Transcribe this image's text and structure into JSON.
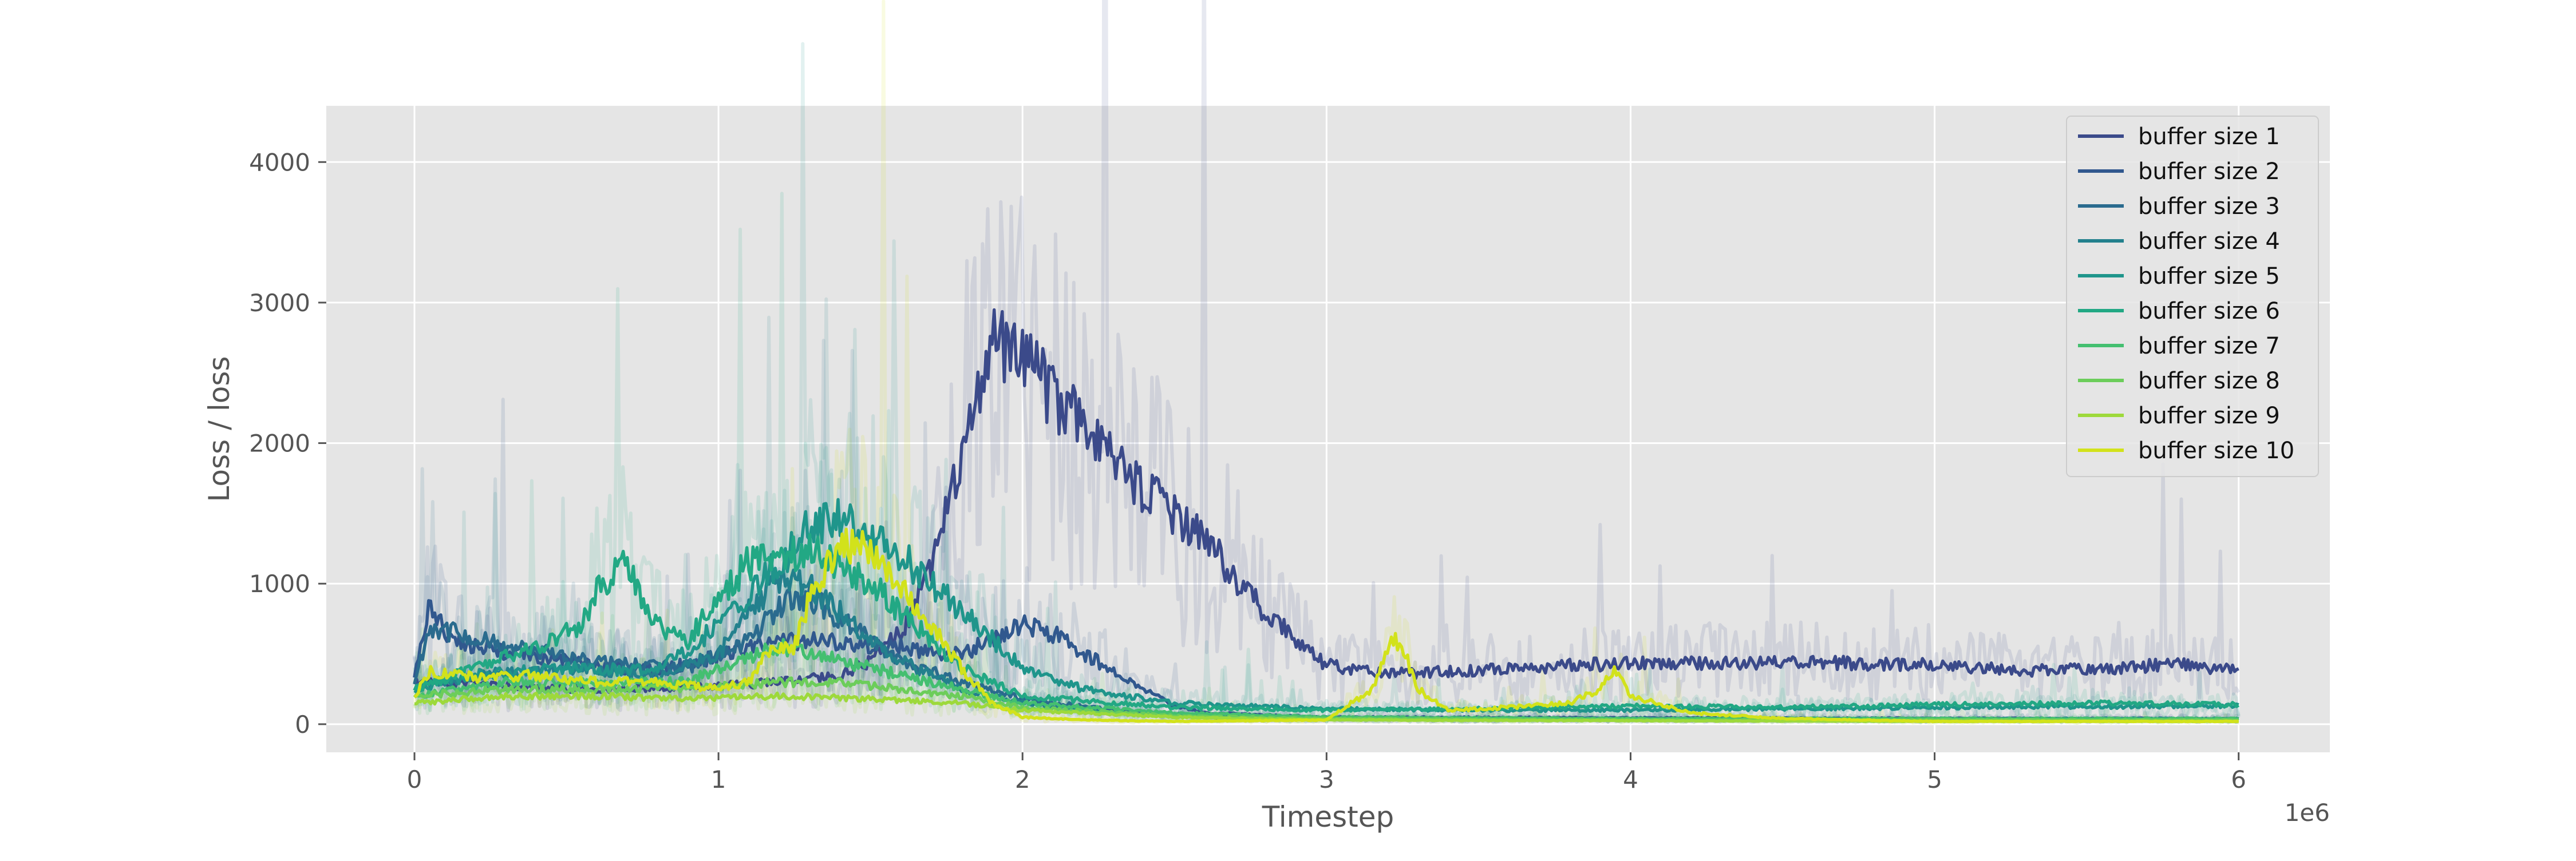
{
  "chart_data": {
    "type": "line",
    "title": "",
    "xlabel": "Timestep",
    "ylabel": "Loss / loss",
    "x_offset_label": "1e6",
    "xlim": [
      -0.29,
      6.3
    ],
    "ylim": [
      -200,
      4400
    ],
    "x_ticks": [
      0,
      1,
      2,
      3,
      4,
      5,
      6
    ],
    "x_tick_labels": [
      "0",
      "1",
      "2",
      "3",
      "4",
      "5",
      "6"
    ],
    "y_ticks": [
      0,
      1000,
      2000,
      3000,
      4000
    ],
    "y_tick_labels": [
      "0",
      "1000",
      "2000",
      "3000",
      "4000"
    ],
    "grid": true,
    "legend_position": "top-right",
    "background": "#e5e5e5",
    "series": [
      {
        "name": "buffer size 1",
        "color": "#3b4a8a",
        "x": [
          0,
          0.2,
          0.5,
          0.8,
          1.0,
          1.2,
          1.4,
          1.5,
          1.6,
          1.7,
          1.8,
          1.9,
          2.0,
          2.1,
          2.2,
          2.3,
          2.4,
          2.5,
          2.6,
          2.7,
          2.8,
          2.9,
          3.0,
          3.2,
          3.5,
          3.8,
          4.0,
          4.3,
          4.6,
          5.0,
          5.3,
          5.6,
          5.8,
          6.0
        ],
        "y": [
          300,
          280,
          250,
          260,
          270,
          300,
          350,
          450,
          650,
          1100,
          1900,
          2700,
          2550,
          2350,
          2150,
          1900,
          1650,
          1500,
          1300,
          1050,
          800,
          600,
          420,
          360,
          380,
          420,
          430,
          440,
          440,
          420,
          380,
          400,
          430,
          380
        ]
      },
      {
        "name": "buffer size 2",
        "color": "#31588e",
        "x": [
          0,
          0.05,
          0.1,
          0.2,
          0.4,
          0.6,
          0.8,
          1.0,
          1.2,
          1.4,
          1.6,
          1.7,
          1.8,
          1.9,
          2.0,
          2.1,
          2.2,
          2.3,
          2.4,
          2.5,
          2.6,
          3.0,
          4.0,
          5.0,
          6.0
        ],
        "y": [
          350,
          850,
          650,
          550,
          480,
          420,
          380,
          480,
          600,
          580,
          550,
          520,
          500,
          600,
          700,
          650,
          500,
          380,
          250,
          130,
          80,
          50,
          45,
          40,
          40
        ]
      },
      {
        "name": "buffer size 3",
        "color": "#2a6b8e",
        "x": [
          0,
          0.05,
          0.3,
          0.6,
          0.9,
          1.1,
          1.2,
          1.3,
          1.4,
          1.5,
          1.6,
          1.8,
          2.0,
          2.3,
          2.6,
          3.0,
          4.0,
          5.0,
          6.0
        ],
        "y": [
          300,
          700,
          550,
          450,
          400,
          600,
          850,
          900,
          750,
          600,
          450,
          300,
          180,
          100,
          60,
          40,
          35,
          30,
          30
        ]
      },
      {
        "name": "buffer size 4",
        "color": "#23808d",
        "x": [
          0,
          0.2,
          0.5,
          0.8,
          1.0,
          1.1,
          1.2,
          1.3,
          1.4,
          1.5,
          1.6,
          1.8,
          2.0,
          2.3,
          2.6,
          3.0,
          4.0,
          5.0,
          6.0
        ],
        "y": [
          250,
          350,
          400,
          350,
          500,
          800,
          1050,
          1000,
          800,
          600,
          450,
          250,
          150,
          80,
          50,
          40,
          40,
          40,
          40
        ]
      },
      {
        "name": "buffer size 5",
        "color": "#1f958b",
        "x": [
          0,
          0.2,
          0.5,
          0.8,
          1.0,
          1.2,
          1.3,
          1.4,
          1.5,
          1.6,
          1.7,
          1.8,
          1.9,
          2.0,
          2.2,
          2.5,
          3.0,
          3.5,
          4.0,
          5.0,
          6.0
        ],
        "y": [
          250,
          350,
          400,
          380,
          700,
          1150,
          1400,
          1450,
          1350,
          1200,
          1000,
          800,
          600,
          400,
          250,
          150,
          110,
          100,
          100,
          120,
          130
        ]
      },
      {
        "name": "buffer size 6",
        "color": "#22a884",
        "x": [
          0,
          0.2,
          0.4,
          0.55,
          0.6,
          0.65,
          0.7,
          0.75,
          0.8,
          0.9,
          1.0,
          1.1,
          1.2,
          1.3,
          1.4,
          1.5,
          1.6,
          1.7,
          1.8,
          2.0,
          2.5,
          3.0,
          3.5,
          4.0,
          4.5,
          5.0,
          5.5,
          6.0
        ],
        "y": [
          250,
          400,
          550,
          700,
          950,
          1050,
          1150,
          900,
          700,
          600,
          900,
          1150,
          1200,
          1250,
          1150,
          1000,
          800,
          600,
          400,
          200,
          120,
          100,
          110,
          130,
          120,
          140,
          150,
          140
        ]
      },
      {
        "name": "buffer size 7",
        "color": "#44bf70",
        "x": [
          0,
          0.3,
          0.6,
          0.9,
          1.0,
          1.2,
          1.4,
          1.6,
          1.8,
          2.0,
          2.5,
          3.0,
          4.0,
          5.0,
          6.0
        ],
        "y": [
          200,
          300,
          300,
          300,
          400,
          550,
          450,
          350,
          250,
          150,
          80,
          50,
          40,
          40,
          40
        ]
      },
      {
        "name": "buffer size 8",
        "color": "#6ccd5a",
        "x": [
          0,
          0.3,
          0.6,
          0.9,
          1.2,
          1.4,
          1.6,
          1.8,
          2.0,
          2.5,
          3.0,
          4.0,
          5.0,
          6.0
        ],
        "y": [
          200,
          250,
          250,
          250,
          300,
          300,
          250,
          200,
          120,
          60,
          40,
          30,
          30,
          30
        ]
      },
      {
        "name": "buffer size 9",
        "color": "#9dd93b",
        "x": [
          0,
          0.3,
          0.6,
          0.9,
          1.2,
          1.5,
          1.8,
          2.0,
          2.5,
          3.0,
          4.0,
          5.0,
          6.0
        ],
        "y": [
          150,
          200,
          200,
          180,
          200,
          180,
          150,
          100,
          50,
          30,
          25,
          20,
          20
        ]
      },
      {
        "name": "buffer size 10",
        "color": "#d2e21b",
        "x": [
          0,
          0.05,
          0.2,
          0.4,
          0.6,
          0.8,
          1.0,
          1.1,
          1.15,
          1.25,
          1.3,
          1.4,
          1.45,
          1.5,
          1.6,
          1.7,
          1.8,
          1.9,
          2.0,
          2.2,
          2.5,
          3.0,
          3.15,
          3.22,
          3.25,
          3.3,
          3.4,
          3.6,
          3.8,
          3.9,
          3.95,
          4.0,
          4.2,
          4.5,
          5.0,
          6.0
        ],
        "y": [
          200,
          380,
          330,
          350,
          300,
          300,
          250,
          300,
          500,
          550,
          900,
          1250,
          1300,
          1250,
          1000,
          700,
          400,
          150,
          50,
          30,
          20,
          30,
          250,
          600,
          550,
          250,
          100,
          120,
          150,
          250,
          400,
          200,
          80,
          40,
          20,
          20
        ]
      }
    ]
  }
}
